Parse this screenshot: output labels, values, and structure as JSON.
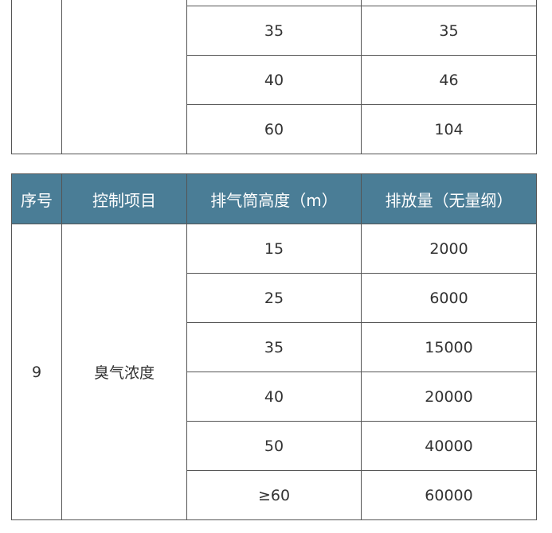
{
  "table_top": {
    "rows": [
      [
        "",
        ""
      ],
      [
        "35",
        "35"
      ],
      [
        "40",
        "46"
      ],
      [
        "60",
        "104"
      ]
    ]
  },
  "table_bottom": {
    "headers": [
      "序号",
      "控制项目",
      "排气筒高度（m）",
      "排放量（无量纲）"
    ],
    "index": "9",
    "item": "臭气浓度",
    "rows": [
      [
        "15",
        "2000"
      ],
      [
        "25",
        "6000"
      ],
      [
        "35",
        "15000"
      ],
      [
        "40",
        "20000"
      ],
      [
        "50",
        "40000"
      ],
      [
        "≥60",
        "60000"
      ]
    ]
  },
  "colors": {
    "header_bg": "#4a7d96"
  }
}
